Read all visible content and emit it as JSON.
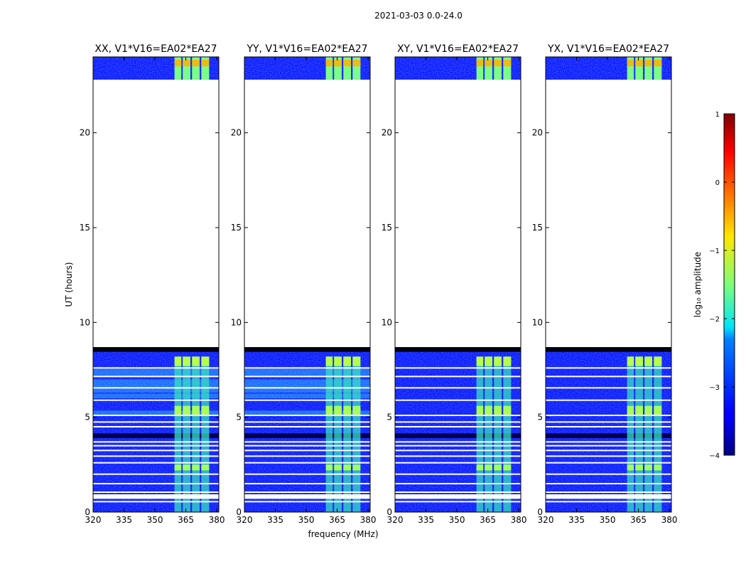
{
  "figure_title": "2021-03-03 0.0-24.0",
  "chart_data": {
    "type": "heatmap",
    "title": "2021-03-03 0.0-24.0",
    "xlabel": "frequency (MHz)",
    "ylabel": "UT (hours)",
    "xlim": [
      320,
      381
    ],
    "ylim": [
      0,
      24
    ],
    "x_ticks": [
      320,
      335,
      350,
      365,
      380
    ],
    "x_tick_labels": [
      "320",
      "335",
      "350",
      "365",
      "380"
    ],
    "y_ticks": [
      0,
      5,
      10,
      15,
      20
    ],
    "y_tick_labels": [
      "0",
      "5",
      "10",
      "15",
      "20"
    ],
    "panels": [
      {
        "title": "XX, V1*V16=EA02*EA27",
        "polarization": "XX"
      },
      {
        "title": "YY, V1*V16=EA02*EA27",
        "polarization": "YY"
      },
      {
        "title": "XY, V1*V16=EA02*EA27",
        "polarization": "XY"
      },
      {
        "title": "YX, V1*V16=EA02*EA27",
        "polarization": "YX"
      }
    ],
    "data_coverage_hours": [
      [
        0,
        8.7
      ],
      [
        22.8,
        24
      ]
    ],
    "no_data_hours": [
      8.7,
      22.8
    ],
    "bright_band_mhz": [
      359,
      378
    ],
    "colorbar": {
      "label": "log₁₀ amplitude",
      "min": -4,
      "max": 1,
      "ticks": [
        1,
        0,
        -1,
        -2,
        -3,
        -4
      ],
      "tick_labels": [
        "1",
        "0",
        "−1",
        "−2",
        "−3",
        "−4"
      ],
      "colormap": "jet"
    }
  }
}
